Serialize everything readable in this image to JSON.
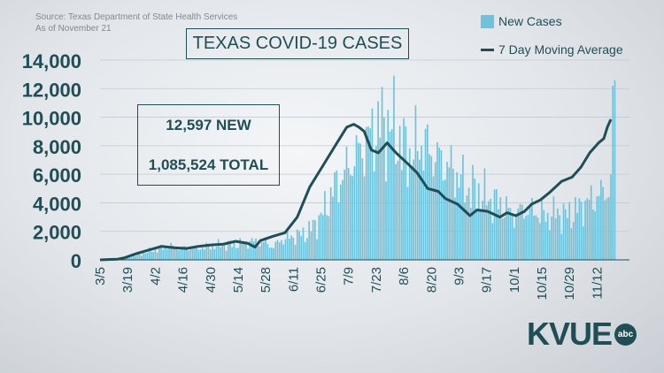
{
  "source_line1": "Source: Texas Department of State Health Services",
  "source_line2": "As of November 21",
  "title": "TEXAS COVID-19 CASES",
  "new_cases": "12,597 NEW",
  "total_cases": "1,085,524 TOTAL",
  "logo": "KVUE",
  "logo_badge": "abc",
  "colors": {
    "bars": "#6cc4dc",
    "average": "#1f4e57",
    "text": "#1f4e57"
  },
  "chart_data": {
    "type": "bar",
    "series": [
      {
        "name": "New Cases",
        "kind": "bar"
      },
      {
        "name": "7 Day Moving Average",
        "kind": "line"
      }
    ],
    "x_ticks": [
      "3/5",
      "3/19",
      "4/2",
      "4/16",
      "4/30",
      "5/14",
      "5/28",
      "6/11",
      "6/25",
      "7/9",
      "7/23",
      "8/6",
      "8/20",
      "9/3",
      "9/17",
      "10/1",
      "10/15",
      "10/29",
      "11/12"
    ],
    "y_ticks": [
      "0",
      "2,000",
      "4,000",
      "6,000",
      "8,000",
      "10,000",
      "12,000",
      "14,000"
    ],
    "ylim": [
      0,
      14000
    ],
    "moving_average": [
      {
        "d": 0,
        "y": 0
      },
      {
        "d": 10,
        "y": 50
      },
      {
        "d": 14,
        "y": 150
      },
      {
        "d": 21,
        "y": 450
      },
      {
        "d": 28,
        "y": 700
      },
      {
        "d": 35,
        "y": 950
      },
      {
        "d": 42,
        "y": 850
      },
      {
        "d": 49,
        "y": 800
      },
      {
        "d": 56,
        "y": 950
      },
      {
        "d": 63,
        "y": 1050
      },
      {
        "d": 70,
        "y": 1100
      },
      {
        "d": 77,
        "y": 1300
      },
      {
        "d": 84,
        "y": 1150
      },
      {
        "d": 88,
        "y": 900
      },
      {
        "d": 91,
        "y": 1350
      },
      {
        "d": 98,
        "y": 1650
      },
      {
        "d": 105,
        "y": 1900
      },
      {
        "d": 112,
        "y": 3000
      },
      {
        "d": 119,
        "y": 5100
      },
      {
        "d": 126,
        "y": 6500
      },
      {
        "d": 133,
        "y": 7900
      },
      {
        "d": 140,
        "y": 9300
      },
      {
        "d": 144,
        "y": 9500
      },
      {
        "d": 147,
        "y": 9300
      },
      {
        "d": 150,
        "y": 9000
      },
      {
        "d": 154,
        "y": 7700
      },
      {
        "d": 158,
        "y": 7500
      },
      {
        "d": 163,
        "y": 8200
      },
      {
        "d": 168,
        "y": 7500
      },
      {
        "d": 175,
        "y": 6700
      },
      {
        "d": 180,
        "y": 6100
      },
      {
        "d": 186,
        "y": 5000
      },
      {
        "d": 192,
        "y": 4800
      },
      {
        "d": 196,
        "y": 4300
      },
      {
        "d": 203,
        "y": 3900
      },
      {
        "d": 210,
        "y": 3100
      },
      {
        "d": 214,
        "y": 3500
      },
      {
        "d": 220,
        "y": 3400
      },
      {
        "d": 227,
        "y": 3000
      },
      {
        "d": 231,
        "y": 3300
      },
      {
        "d": 236,
        "y": 3100
      },
      {
        "d": 241,
        "y": 3400
      },
      {
        "d": 245,
        "y": 3900
      },
      {
        "d": 250,
        "y": 4200
      },
      {
        "d": 255,
        "y": 4700
      },
      {
        "d": 262,
        "y": 5500
      },
      {
        "d": 268,
        "y": 5800
      },
      {
        "d": 273,
        "y": 6500
      },
      {
        "d": 278,
        "y": 7500
      },
      {
        "d": 283,
        "y": 8200
      },
      {
        "d": 286,
        "y": 8500
      },
      {
        "d": 288,
        "y": 9300
      },
      {
        "d": 290,
        "y": 9850
      }
    ]
  }
}
